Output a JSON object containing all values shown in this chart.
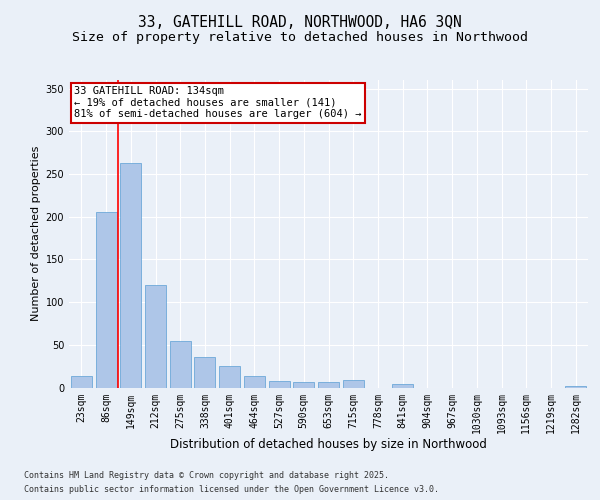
{
  "title1": "33, GATEHILL ROAD, NORTHWOOD, HA6 3QN",
  "title2": "Size of property relative to detached houses in Northwood",
  "xlabel": "Distribution of detached houses by size in Northwood",
  "ylabel": "Number of detached properties",
  "categories": [
    "23sqm",
    "86sqm",
    "149sqm",
    "212sqm",
    "275sqm",
    "338sqm",
    "401sqm",
    "464sqm",
    "527sqm",
    "590sqm",
    "653sqm",
    "715sqm",
    "778sqm",
    "841sqm",
    "904sqm",
    "967sqm",
    "1030sqm",
    "1093sqm",
    "1156sqm",
    "1219sqm",
    "1282sqm"
  ],
  "values": [
    13,
    205,
    263,
    120,
    54,
    36,
    25,
    13,
    8,
    7,
    7,
    9,
    0,
    4,
    0,
    0,
    0,
    0,
    0,
    0,
    2
  ],
  "bar_color": "#aec6e8",
  "bar_edge_color": "#5a9fd4",
  "red_line_x": 1.5,
  "annotation_text": "33 GATEHILL ROAD: 134sqm\n← 19% of detached houses are smaller (141)\n81% of semi-detached houses are larger (604) →",
  "annotation_box_color": "#ffffff",
  "annotation_box_edge": "#cc0000",
  "ylim": [
    0,
    360
  ],
  "yticks": [
    0,
    50,
    100,
    150,
    200,
    250,
    300,
    350
  ],
  "bg_color": "#eaf0f8",
  "fig_bg_color": "#eaf0f8",
  "grid_color": "#ffffff",
  "footer1": "Contains HM Land Registry data © Crown copyright and database right 2025.",
  "footer2": "Contains public sector information licensed under the Open Government Licence v3.0.",
  "title1_fontsize": 10.5,
  "title2_fontsize": 9.5,
  "tick_fontsize": 7,
  "xlabel_fontsize": 8.5,
  "ylabel_fontsize": 8,
  "footer_fontsize": 6
}
